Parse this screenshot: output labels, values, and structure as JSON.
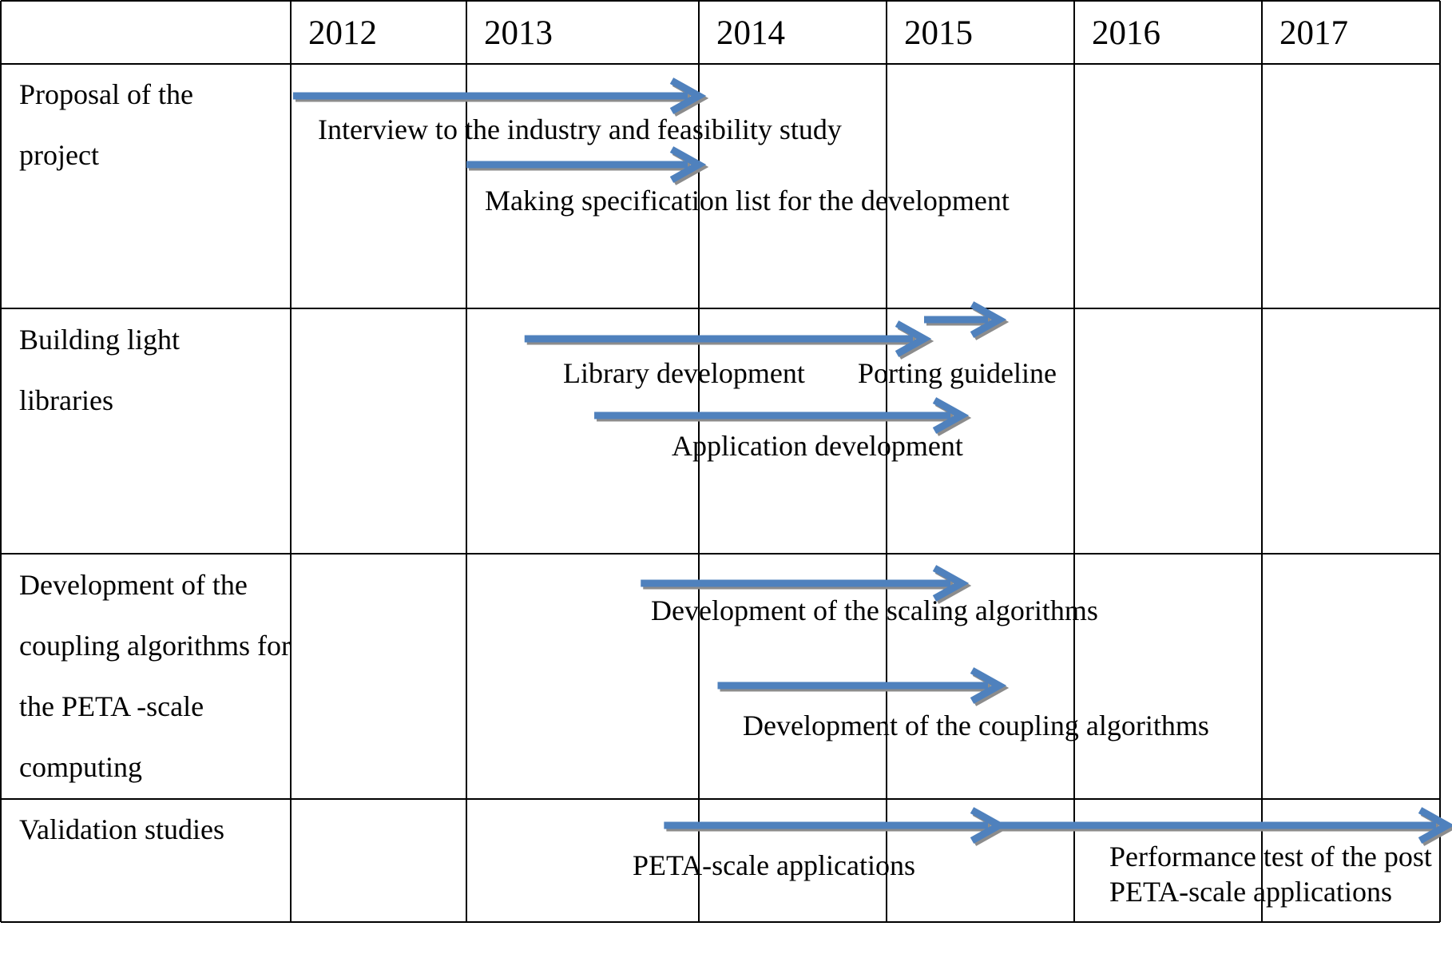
{
  "years": [
    "2012",
    "2013",
    "2014",
    "2015",
    "2016",
    "2017"
  ],
  "arrow_color": "#4f81bd",
  "arrow_shadow_color": "#8c8c8c",
  "rows": [
    {
      "label": "Proposal of the project",
      "tasks": [
        {
          "label": "Interview to the industry and feasibility study",
          "start": "2012",
          "end": "2014"
        },
        {
          "label": "Making specification list for the development",
          "start": "2013",
          "end": "2014"
        }
      ]
    },
    {
      "label": "Building light libraries",
      "tasks": [
        {
          "label": "Library development",
          "start": "2013.25",
          "end": "2015.2"
        },
        {
          "label": "Porting guideline",
          "start": "2015.2",
          "end": "2015.6"
        },
        {
          "label": "Application development",
          "start": "2013.55",
          "end": "2015.4"
        }
      ]
    },
    {
      "label": "Development of the coupling algorithms for the PETA  -scale computing",
      "tasks": [
        {
          "label": "Development of the scaling algorithms",
          "start": "2013.75",
          "end": "2015.4"
        },
        {
          "label": "Development of the coupling algorithms",
          "start": "2014.1",
          "end": "2015.6"
        }
      ]
    },
    {
      "label": "Validation studies",
      "tasks": [
        {
          "label": "PETA-scale applications",
          "start": "2013.85",
          "end": "2015.6"
        },
        {
          "label": "Performance test of the post PETA-scale applications",
          "start": "2015.6",
          "end": "2018"
        }
      ]
    }
  ]
}
